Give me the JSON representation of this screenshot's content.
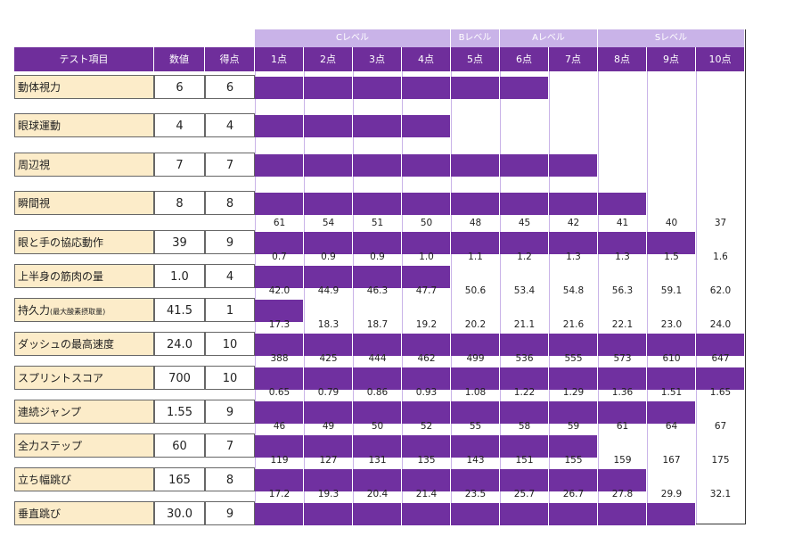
{
  "header": {
    "item_label": "テスト項目",
    "value_label": "数値",
    "score_label": "得点",
    "points": [
      "1点",
      "2点",
      "3点",
      "4点",
      "5点",
      "6点",
      "7点",
      "8点",
      "9点",
      "10点"
    ],
    "levels": [
      {
        "label": "Cレベル",
        "start": 1,
        "end": 4
      },
      {
        "label": "Bレベル",
        "start": 5,
        "end": 5
      },
      {
        "label": "Aレベル",
        "start": 6,
        "end": 7
      },
      {
        "label": "Sレベル",
        "start": 8,
        "end": 10
      }
    ]
  },
  "rows": [
    {
      "name": "動体視力",
      "value": "6",
      "score": 6,
      "thresholds": null
    },
    {
      "name": "眼球運動",
      "value": "4",
      "score": 4,
      "thresholds": null
    },
    {
      "name": "周辺視",
      "value": "7",
      "score": 7,
      "thresholds": null
    },
    {
      "name": "瞬間視",
      "value": "8",
      "score": 8,
      "thresholds": null
    },
    {
      "name": "眼と手の協応動作",
      "value": "39",
      "score": 9,
      "thresholds": [
        "61",
        "54",
        "51",
        "50",
        "48",
        "45",
        "42",
        "41",
        "40",
        "37"
      ]
    },
    {
      "name": "上半身の筋肉の量",
      "value": "1.0",
      "score": 4,
      "thresholds": [
        "0.7",
        "0.9",
        "0.9",
        "1.0",
        "1.1",
        "1.2",
        "1.3",
        "1.3",
        "1.5",
        "1.6"
      ]
    },
    {
      "name": "持久力",
      "name_note": "(最大酸素摂取量)",
      "value": "41.5",
      "score": 1,
      "thresholds": [
        "42.0",
        "44.9",
        "46.3",
        "47.7",
        "50.6",
        "53.4",
        "54.8",
        "56.3",
        "59.1",
        "62.0"
      ]
    },
    {
      "name": "ダッシュの最高速度",
      "value": "24.0",
      "score": 10,
      "thresholds": [
        "17.3",
        "18.3",
        "18.7",
        "19.2",
        "20.2",
        "21.1",
        "21.6",
        "22.1",
        "23.0",
        "24.0"
      ]
    },
    {
      "name": "スプリントスコア",
      "value": "700",
      "score": 10,
      "thresholds": [
        "388",
        "425",
        "444",
        "462",
        "499",
        "536",
        "555",
        "573",
        "610",
        "647"
      ]
    },
    {
      "name": "連続ジャンプ",
      "value": "1.55",
      "score": 9,
      "thresholds": [
        "0.65",
        "0.79",
        "0.86",
        "0.93",
        "1.08",
        "1.22",
        "1.29",
        "1.36",
        "1.51",
        "1.65"
      ]
    },
    {
      "name": "全力ステップ",
      "value": "60",
      "score": 7,
      "thresholds": [
        "46",
        "49",
        "50",
        "52",
        "55",
        "58",
        "59",
        "61",
        "64",
        "67"
      ]
    },
    {
      "name": "立ち幅跳び",
      "value": "165",
      "score": 8,
      "thresholds": [
        "119",
        "127",
        "131",
        "135",
        "143",
        "151",
        "155",
        "159",
        "167",
        "175"
      ]
    },
    {
      "name": "垂直跳び",
      "value": "30.0",
      "score": 9,
      "thresholds": [
        "17.2",
        "19.3",
        "20.4",
        "21.4",
        "23.5",
        "25.7",
        "26.7",
        "27.8",
        "29.9",
        "32.1"
      ]
    }
  ],
  "colors": {
    "bar": "#7030a0",
    "header": "#6f2e9b",
    "level_header": "#c9b3e8",
    "name_bg": "#fcecc9"
  }
}
